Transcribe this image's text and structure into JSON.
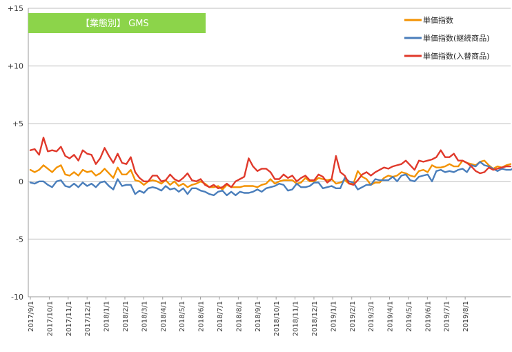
{
  "chart_data": {
    "type": "line",
    "title": "【業態別】 GMS",
    "xlabel": "",
    "ylabel": "",
    "ylim": [
      -10,
      15
    ],
    "yticks": [
      15,
      10,
      5,
      0,
      -5,
      -10
    ],
    "ytick_labels": [
      "+15",
      "+10",
      "+5",
      "0",
      "-5",
      "-10"
    ],
    "grid": "horizontal",
    "legend_position": "top-right",
    "x_tick_labels": [
      "2017/9/1",
      "2017/10/1",
      "2017/11/1",
      "2017/12/1",
      "2018/1/1",
      "2018/2/1",
      "2018/3/1",
      "2018/4/1",
      "2018/5/1",
      "2018/6/1",
      "2018/7/1",
      "2018/8/1",
      "2018/9/1",
      "2018/10/1",
      "2018/11/1",
      "2018/12/1",
      "2019/1/1",
      "2019/2/1",
      "2019/3/1",
      "2019/4/1",
      "2019/5/1",
      "2019/6/1",
      "2019/7/1",
      "2019/8/1"
    ],
    "points_per_month": 4.33,
    "series": [
      {
        "name": "単価指数",
        "color": "#f39200",
        "values": [
          1.0,
          0.8,
          1.0,
          1.4,
          1.1,
          0.8,
          1.2,
          1.4,
          0.6,
          0.5,
          0.8,
          0.5,
          1.0,
          0.8,
          0.9,
          0.5,
          0.7,
          1.1,
          0.7,
          0.3,
          1.2,
          0.6,
          0.6,
          1.0,
          0.1,
          0.0,
          -0.3,
          0.0,
          0.1,
          0.0,
          -0.2,
          0.1,
          -0.3,
          0.0,
          -0.4,
          -0.2,
          -0.5,
          -0.3,
          -0.2,
          0.0,
          -0.2,
          -0.5,
          -0.5,
          -0.4,
          -0.7,
          -0.3,
          -0.5,
          -0.5,
          -0.5,
          -0.4,
          -0.4,
          -0.4,
          -0.5,
          -0.3,
          -0.2,
          0.2,
          -0.2,
          0.0,
          0.1,
          0.1,
          0.1,
          -0.2,
          -0.1,
          0.3,
          0.0,
          0.0,
          0.3,
          0.2,
          0.1,
          0.2,
          -0.2,
          -0.1,
          0.1,
          -0.2,
          -0.2,
          0.9,
          0.4,
          0.2,
          -0.3,
          -0.1,
          -0.1,
          0.3,
          0.5,
          0.4,
          0.5,
          0.8,
          0.7,
          0.5,
          0.4,
          0.9,
          1.0,
          0.8,
          1.4,
          1.2,
          1.2,
          1.3,
          1.5,
          1.3,
          1.3,
          1.8,
          1.6,
          1.5,
          1.4,
          1.7,
          1.8,
          1.4,
          1.1,
          1.3,
          1.2,
          1.4,
          1.5
        ]
      },
      {
        "name": "単価指数(継続商品)",
        "color": "#4a7ebb",
        "values": [
          -0.1,
          -0.2,
          0.0,
          0.0,
          -0.3,
          -0.5,
          0.0,
          0.1,
          -0.4,
          -0.5,
          -0.2,
          -0.5,
          -0.1,
          -0.4,
          -0.2,
          -0.5,
          -0.1,
          0.0,
          -0.4,
          -0.7,
          0.2,
          -0.4,
          -0.3,
          -0.3,
          -1.1,
          -0.8,
          -1.0,
          -0.6,
          -0.5,
          -0.6,
          -0.8,
          -0.4,
          -0.7,
          -0.6,
          -0.9,
          -0.6,
          -1.1,
          -0.6,
          -0.6,
          -0.8,
          -0.9,
          -1.1,
          -1.2,
          -0.9,
          -0.8,
          -1.2,
          -0.9,
          -1.2,
          -0.9,
          -1.0,
          -1.0,
          -0.9,
          -0.7,
          -0.9,
          -0.6,
          -0.5,
          -0.4,
          -0.2,
          -0.3,
          -0.8,
          -0.7,
          -0.2,
          -0.5,
          -0.5,
          -0.4,
          -0.1,
          -0.1,
          -0.6,
          -0.5,
          -0.4,
          -0.6,
          -0.6,
          0.3,
          0.0,
          -0.1,
          -0.7,
          -0.5,
          -0.3,
          -0.3,
          0.2,
          0.1,
          0.1,
          0.1,
          0.4,
          0.0,
          0.5,
          0.6,
          0.1,
          0.0,
          0.4,
          0.5,
          0.6,
          0.0,
          0.9,
          1.0,
          0.8,
          0.9,
          0.8,
          1.0,
          1.1,
          0.8,
          1.4,
          1.3,
          1.7,
          1.4,
          1.3,
          1.1,
          0.9,
          1.1,
          1.0,
          1.0,
          1.2
        ]
      },
      {
        "name": "単価指数(入替商品)",
        "color": "#e0392b",
        "values": [
          2.7,
          2.8,
          2.3,
          3.8,
          2.6,
          2.7,
          2.6,
          3.0,
          2.2,
          2.0,
          2.3,
          1.8,
          2.7,
          2.4,
          2.3,
          1.5,
          2.0,
          2.9,
          2.2,
          1.6,
          2.4,
          1.6,
          1.5,
          2.1,
          0.8,
          0.3,
          0.0,
          0.0,
          0.5,
          0.5,
          0.0,
          0.1,
          0.6,
          0.2,
          0.0,
          0.3,
          0.7,
          0.1,
          0.0,
          0.2,
          -0.3,
          -0.5,
          -0.3,
          -0.6,
          -0.5,
          -0.2,
          -0.5,
          0.0,
          0.2,
          0.4,
          2.0,
          1.3,
          0.9,
          1.1,
          1.1,
          0.8,
          0.2,
          0.2,
          0.6,
          0.3,
          0.5,
          0.0,
          0.3,
          0.5,
          0.1,
          0.1,
          0.6,
          0.4,
          -0.1,
          0.2,
          2.2,
          0.8,
          0.5,
          -0.2,
          -0.3,
          0.1,
          0.6,
          0.8,
          0.5,
          0.8,
          1.0,
          1.2,
          1.1,
          1.3,
          1.4,
          1.5,
          1.8,
          1.4,
          1.0,
          1.8,
          1.7,
          1.8,
          1.9,
          2.1,
          2.7,
          2.1,
          2.1,
          2.4,
          1.8,
          1.8,
          1.6,
          1.3,
          0.9,
          0.7,
          0.8,
          1.2,
          1.0,
          1.1,
          1.2,
          1.3,
          1.3
        ]
      }
    ]
  }
}
